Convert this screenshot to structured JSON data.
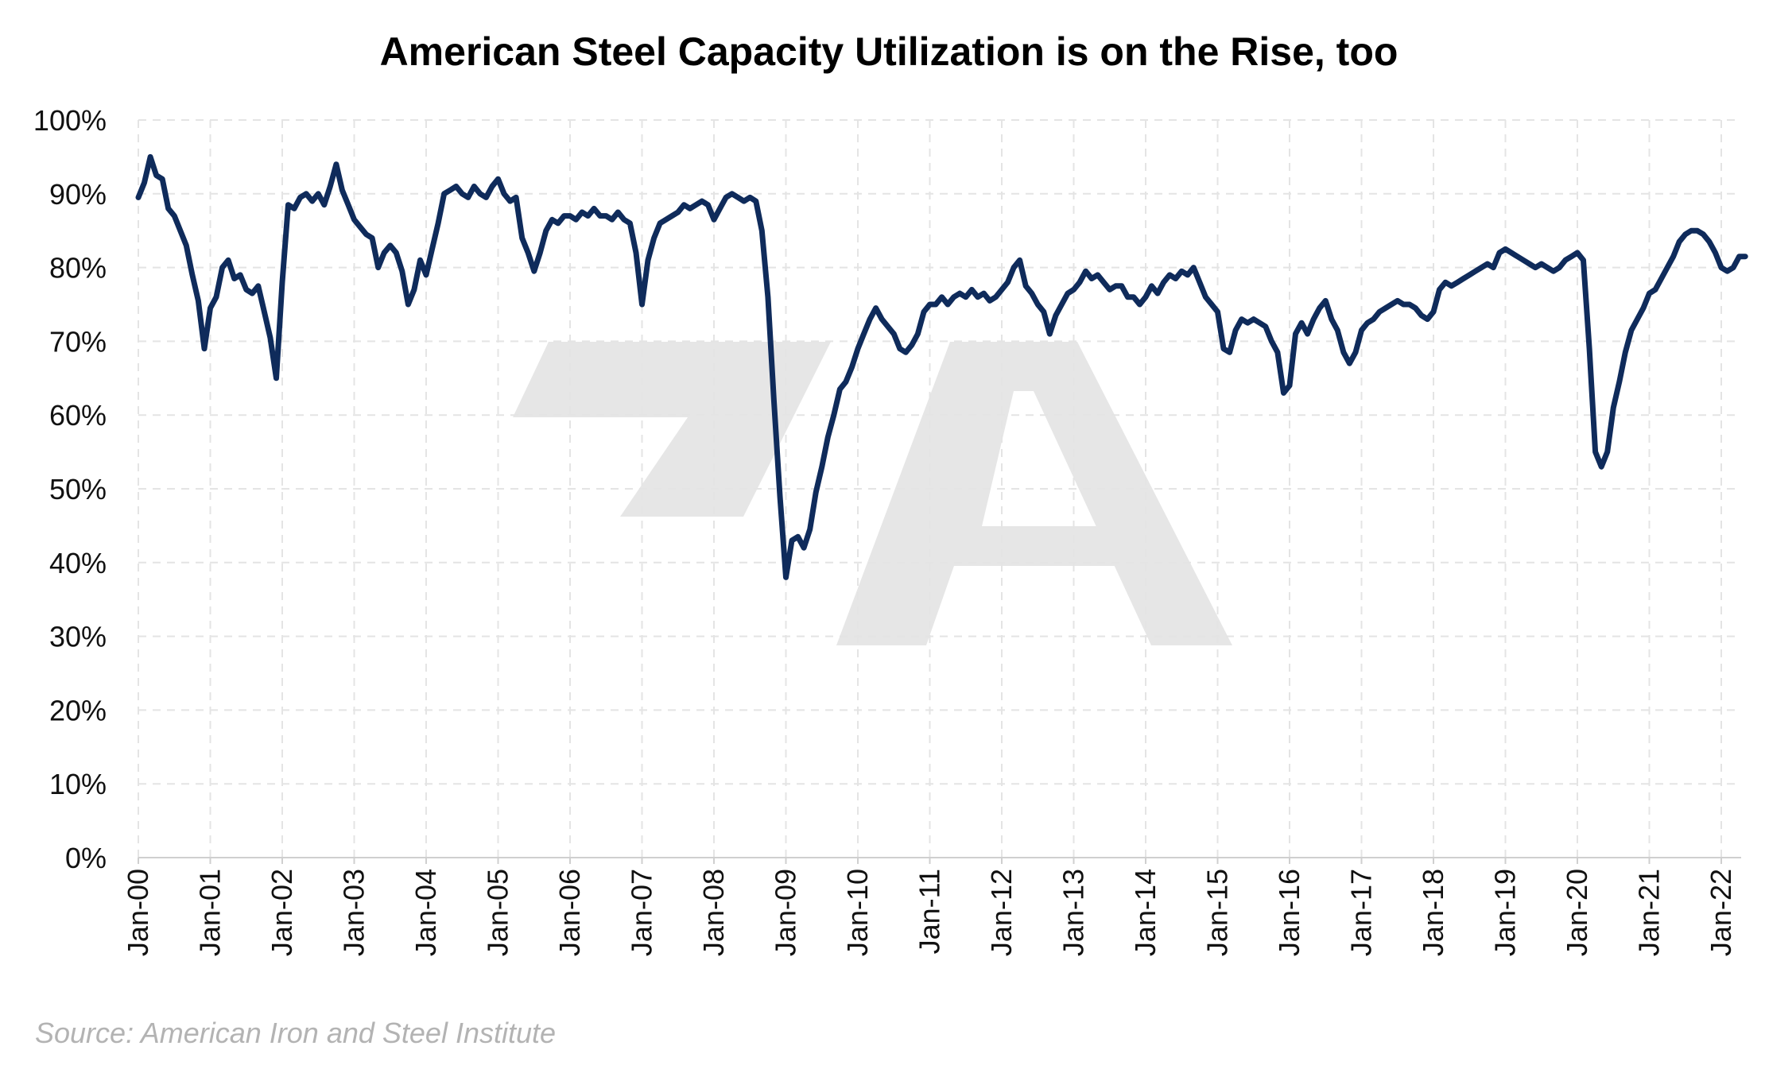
{
  "chart_data": {
    "type": "line",
    "title": "American Steel Capacity Utilization is on the Rise, too",
    "source": "Source: American Iron and Steel Institute",
    "xlabel": "",
    "ylabel": "",
    "ylim": [
      0,
      100
    ],
    "yticks": [
      "0%",
      "10%",
      "20%",
      "30%",
      "40%",
      "50%",
      "60%",
      "70%",
      "80%",
      "90%",
      "100%"
    ],
    "xticks": [
      "Jan-00",
      "Jan-01",
      "Jan-02",
      "Jan-03",
      "Jan-04",
      "Jan-05",
      "Jan-06",
      "Jan-07",
      "Jan-08",
      "Jan-09",
      "Jan-10",
      "Jan-11",
      "Jan-12",
      "Jan-13",
      "Jan-14",
      "Jan-15",
      "Jan-16",
      "Jan-17",
      "Jan-18",
      "Jan-19",
      "Jan-20",
      "Jan-21",
      "Jan-22"
    ],
    "grid": true,
    "legend": "none",
    "line_color": "#0f2b5b",
    "watermark_color": "#e6e6e6",
    "series": [
      {
        "x": [
          "2000-01",
          "2000-02",
          "2000-03",
          "2000-04",
          "2000-05",
          "2000-06",
          "2000-07",
          "2000-08",
          "2000-09",
          "2000-10",
          "2000-11",
          "2000-12",
          "2001-01",
          "2001-02",
          "2001-03",
          "2001-04",
          "2001-05",
          "2001-06",
          "2001-07",
          "2001-08",
          "2001-09",
          "2001-10",
          "2001-11",
          "2001-12",
          "2002-01",
          "2002-02",
          "2002-03",
          "2002-04",
          "2002-05",
          "2002-06",
          "2002-07",
          "2002-08",
          "2002-09",
          "2002-10",
          "2002-11",
          "2002-12",
          "2003-01",
          "2003-02",
          "2003-03",
          "2003-04",
          "2003-05",
          "2003-06",
          "2003-07",
          "2003-08",
          "2003-09",
          "2003-10",
          "2003-11",
          "2003-12",
          "2004-01",
          "2004-02",
          "2004-03",
          "2004-04",
          "2004-05",
          "2004-06",
          "2004-07",
          "2004-08",
          "2004-09",
          "2004-10",
          "2004-11",
          "2004-12",
          "2005-01",
          "2005-02",
          "2005-03",
          "2005-04",
          "2005-05",
          "2005-06",
          "2005-07",
          "2005-08",
          "2005-09",
          "2005-10",
          "2005-11",
          "2005-12",
          "2006-01",
          "2006-02",
          "2006-03",
          "2006-04",
          "2006-05",
          "2006-06",
          "2006-07",
          "2006-08",
          "2006-09",
          "2006-10",
          "2006-11",
          "2006-12",
          "2007-01",
          "2007-02",
          "2007-03",
          "2007-04",
          "2007-05",
          "2007-06",
          "2007-07",
          "2007-08",
          "2007-09",
          "2007-10",
          "2007-11",
          "2007-12",
          "2008-01",
          "2008-02",
          "2008-03",
          "2008-04",
          "2008-05",
          "2008-06",
          "2008-07",
          "2008-08",
          "2008-09",
          "2008-10",
          "2008-11",
          "2008-12",
          "2009-01",
          "2009-02",
          "2009-03",
          "2009-04",
          "2009-05",
          "2009-06",
          "2009-07",
          "2009-08",
          "2009-09",
          "2009-10",
          "2009-11",
          "2009-12",
          "2010-01",
          "2010-02",
          "2010-03",
          "2010-04",
          "2010-05",
          "2010-06",
          "2010-07",
          "2010-08",
          "2010-09",
          "2010-10",
          "2010-11",
          "2010-12",
          "2011-01",
          "2011-02",
          "2011-03",
          "2011-04",
          "2011-05",
          "2011-06",
          "2011-07",
          "2011-08",
          "2011-09",
          "2011-10",
          "2011-11",
          "2011-12",
          "2012-01",
          "2012-02",
          "2012-03",
          "2012-04",
          "2012-05",
          "2012-06",
          "2012-07",
          "2012-08",
          "2012-09",
          "2012-10",
          "2012-11",
          "2012-12",
          "2013-01",
          "2013-02",
          "2013-03",
          "2013-04",
          "2013-05",
          "2013-06",
          "2013-07",
          "2013-08",
          "2013-09",
          "2013-10",
          "2013-11",
          "2013-12",
          "2014-01",
          "2014-02",
          "2014-03",
          "2014-04",
          "2014-05",
          "2014-06",
          "2014-07",
          "2014-08",
          "2014-09",
          "2014-10",
          "2014-11",
          "2014-12",
          "2015-01",
          "2015-02",
          "2015-03",
          "2015-04",
          "2015-05",
          "2015-06",
          "2015-07",
          "2015-08",
          "2015-09",
          "2015-10",
          "2015-11",
          "2015-12",
          "2016-01",
          "2016-02",
          "2016-03",
          "2016-04",
          "2016-05",
          "2016-06",
          "2016-07",
          "2016-08",
          "2016-09",
          "2016-10",
          "2016-11",
          "2016-12",
          "2017-01",
          "2017-02",
          "2017-03",
          "2017-04",
          "2017-05",
          "2017-06",
          "2017-07",
          "2017-08",
          "2017-09",
          "2017-10",
          "2017-11",
          "2017-12",
          "2018-01",
          "2018-02",
          "2018-03",
          "2018-04",
          "2018-05",
          "2018-06",
          "2018-07",
          "2018-08",
          "2018-09",
          "2018-10",
          "2018-11",
          "2018-12",
          "2019-01",
          "2019-02",
          "2019-03",
          "2019-04",
          "2019-05",
          "2019-06",
          "2019-07",
          "2019-08",
          "2019-09",
          "2019-10",
          "2019-11",
          "2019-12",
          "2020-01",
          "2020-02",
          "2020-03",
          "2020-04",
          "2020-05",
          "2020-06",
          "2020-07",
          "2020-08",
          "2020-09",
          "2020-10",
          "2020-11",
          "2020-12",
          "2021-01",
          "2021-02",
          "2021-03",
          "2021-04",
          "2021-05",
          "2021-06",
          "2021-07",
          "2021-08",
          "2021-09",
          "2021-10",
          "2021-11",
          "2021-12",
          "2022-01",
          "2022-02",
          "2022-03",
          "2022-04",
          "2022-05"
        ],
        "values": [
          89.5,
          91.5,
          95.0,
          92.5,
          92.0,
          88.0,
          87.0,
          85.0,
          83.0,
          79.0,
          75.5,
          69.0,
          74.5,
          76.0,
          80.0,
          81.0,
          78.5,
          79.0,
          77.0,
          76.5,
          77.5,
          74.0,
          70.5,
          65.0,
          78.0,
          88.5,
          88.0,
          89.5,
          90.0,
          89.0,
          90.0,
          88.5,
          91.0,
          94.0,
          90.5,
          88.5,
          86.5,
          85.5,
          84.5,
          84.0,
          80.0,
          82.0,
          83.0,
          82.0,
          79.5,
          75.0,
          77.0,
          81.0,
          79.0,
          82.5,
          86.0,
          90.0,
          90.5,
          91.0,
          90.0,
          89.5,
          91.0,
          90.0,
          89.5,
          91.0,
          92.0,
          90.0,
          89.0,
          89.5,
          84.0,
          82.0,
          79.5,
          82.0,
          85.0,
          86.5,
          86.0,
          87.0,
          87.0,
          86.5,
          87.5,
          87.0,
          88.0,
          87.0,
          87.0,
          86.5,
          87.5,
          86.5,
          86.0,
          82.0,
          75.0,
          81.0,
          84.0,
          86.0,
          86.5,
          87.0,
          87.5,
          88.5,
          88.0,
          88.5,
          89.0,
          88.5,
          86.5,
          88.0,
          89.5,
          90.0,
          89.5,
          89.0,
          89.5,
          89.0,
          85.0,
          76.0,
          62.0,
          49.0,
          38.0,
          43.0,
          43.5,
          42.0,
          44.5,
          49.5,
          53.0,
          57.0,
          60.0,
          63.5,
          64.5,
          66.5,
          69.0,
          71.0,
          73.0,
          74.5,
          73.0,
          72.0,
          71.0,
          69.0,
          68.5,
          69.5,
          71.0,
          74.0,
          75.0,
          75.0,
          76.0,
          75.0,
          76.0,
          76.5,
          76.0,
          77.0,
          76.0,
          76.5,
          75.5,
          76.0,
          77.0,
          78.0,
          80.0,
          81.0,
          77.5,
          76.5,
          75.0,
          74.0,
          71.0,
          73.5,
          75.0,
          76.5,
          77.0,
          78.0,
          79.5,
          78.5,
          79.0,
          78.0,
          77.0,
          77.5,
          77.5,
          76.0,
          76.0,
          75.0,
          76.0,
          77.5,
          76.5,
          78.0,
          79.0,
          78.5,
          79.5,
          79.0,
          80.0,
          78.0,
          76.0,
          75.0,
          74.0,
          69.0,
          68.5,
          71.5,
          73.0,
          72.5,
          73.0,
          72.5,
          72.0,
          70.0,
          68.5,
          63.0,
          64.0,
          71.0,
          72.5,
          71.0,
          73.0,
          74.5,
          75.5,
          73.0,
          71.5,
          68.5,
          67.0,
          68.5,
          71.5,
          72.5,
          73.0,
          74.0,
          74.5,
          75.0,
          75.5,
          75.0,
          75.0,
          74.5,
          73.5,
          73.0,
          74.0,
          77.0,
          78.0,
          77.5,
          78.0,
          78.5,
          79.0,
          79.5,
          80.0,
          80.5,
          80.0,
          82.0,
          82.5,
          82.0,
          81.5,
          81.0,
          80.5,
          80.0,
          80.5,
          80.0,
          79.5,
          80.0,
          81.0,
          81.5,
          82.0,
          81.0,
          69.0,
          55.0,
          53.0,
          55.0,
          61.0,
          64.5,
          68.5,
          71.5,
          73.0,
          74.5,
          76.5,
          77.0,
          78.5,
          80.0,
          81.5,
          83.5,
          84.5,
          85.0,
          85.0,
          84.5,
          83.5,
          82.0,
          80.0,
          79.5,
          80.0,
          81.5,
          81.5
        ]
      }
    ]
  }
}
